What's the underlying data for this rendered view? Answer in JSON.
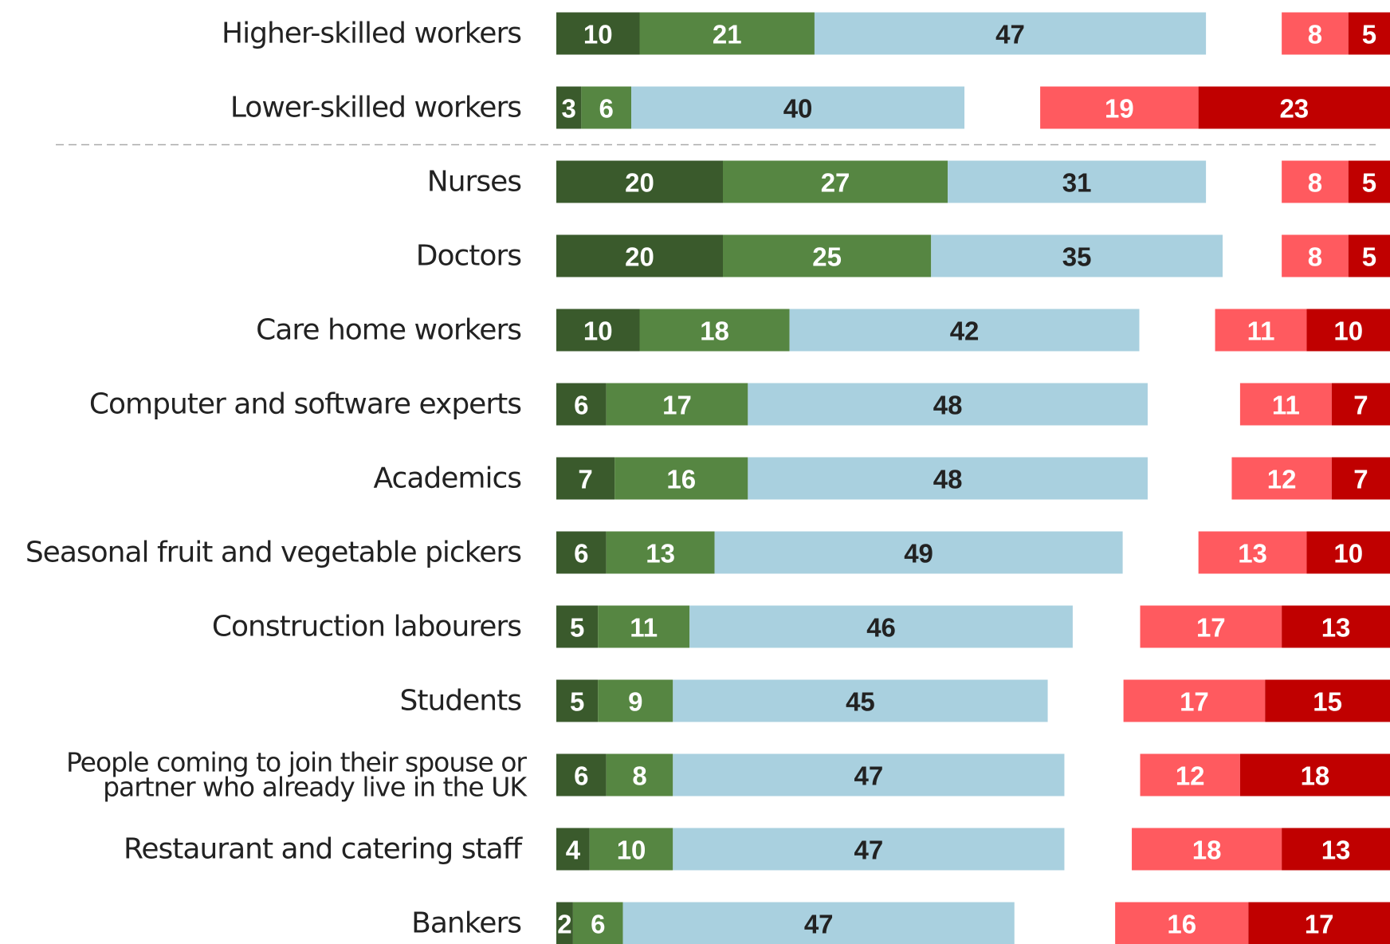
{
  "chart_data": {
    "type": "bar",
    "categories": [
      "Higher-skilled workers",
      "Lower-skilled workers",
      "Nurses",
      "Doctors",
      "Care home workers",
      "Computer and software experts",
      "Academics",
      "Seasonal fruit and vegetable pickers",
      "Construction labourers",
      "Students",
      "People coming to join their spouse or\npartner who already live in the UK",
      "Restaurant and catering staff",
      "Bankers"
    ],
    "series": [
      {
        "color": "#3a5a2c",
        "values": [
          10,
          3,
          20,
          20,
          10,
          6,
          7,
          6,
          5,
          5,
          6,
          4,
          2
        ]
      },
      {
        "color": "#568642",
        "values": [
          21,
          6,
          27,
          25,
          18,
          17,
          16,
          13,
          11,
          9,
          8,
          10,
          6
        ]
      },
      {
        "color": "#a9d0df",
        "values": [
          47,
          40,
          31,
          35,
          42,
          48,
          48,
          49,
          46,
          45,
          47,
          47,
          47
        ]
      },
      {
        "color": "#ff5a5f",
        "values": [
          8,
          19,
          8,
          8,
          11,
          11,
          12,
          13,
          17,
          17,
          12,
          18,
          16
        ]
      },
      {
        "color": "#c00000",
        "values": [
          5,
          23,
          5,
          5,
          10,
          7,
          7,
          10,
          13,
          15,
          18,
          13,
          17
        ]
      }
    ]
  }
}
